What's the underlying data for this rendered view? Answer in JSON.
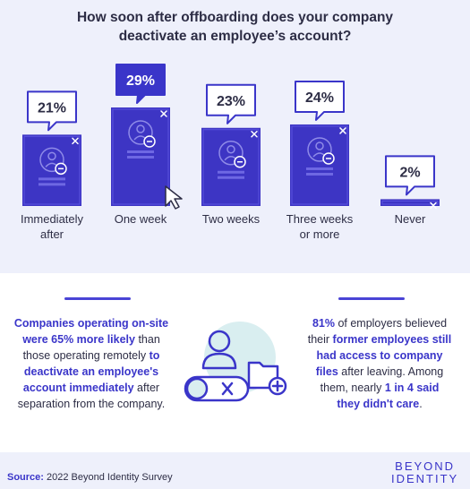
{
  "title": [
    "How soon after offboarding does your company",
    "deactivate an employee’s account?"
  ],
  "chart_data": {
    "type": "bar",
    "categories": [
      "Immediately after",
      "One week",
      "Two weeks",
      "Three weeks or more",
      "Never"
    ],
    "values": [
      21,
      29,
      23,
      24,
      2
    ],
    "data_labels": [
      "21%",
      "29%",
      "23%",
      "24%",
      "2%"
    ],
    "highlight_index": 1,
    "ylim": [
      0,
      29
    ]
  },
  "category_labels": [
    [
      "Immediately",
      "after"
    ],
    [
      "One week"
    ],
    [
      "Two weeks"
    ],
    [
      "Three weeks",
      "or more"
    ],
    [
      "Never"
    ]
  ],
  "colors": {
    "bar": "#3d35c4",
    "bar_dark": "#2a2399",
    "bubble_border": "#3a35c9",
    "highlight_bubble": "#3a35c9",
    "accent_text": "#3a35c9",
    "background": "#eef0fb"
  },
  "icons": [
    "user-icon",
    "close-icon",
    "cursor-icon",
    "folder-add-icon"
  ],
  "left_paragraph": {
    "s1": "Companies operating on-site",
    "s2": "were 65% more likely",
    "s3": " than",
    "s4": "those operating remotely ",
    "s5": "to",
    "s6": "deactivate an employee's",
    "s7": "account immediately",
    "s8": " after",
    "s9": "separation from the company."
  },
  "right_paragraph": {
    "s1": "81%",
    "s2": " of employers believed",
    "s3": "their ",
    "s4": "former employees still",
    "s5": "had access to company",
    "s6": "files",
    "s7": " after leaving. Among",
    "s8": "them, nearly ",
    "s9": "1 in 4 said",
    "s10": "they didn't care",
    "s11": "."
  },
  "source": {
    "label": "Source:",
    "text": " 2022 Beyond Identity Survey"
  },
  "logo": [
    "BEYOND",
    "IDENTITY"
  ]
}
